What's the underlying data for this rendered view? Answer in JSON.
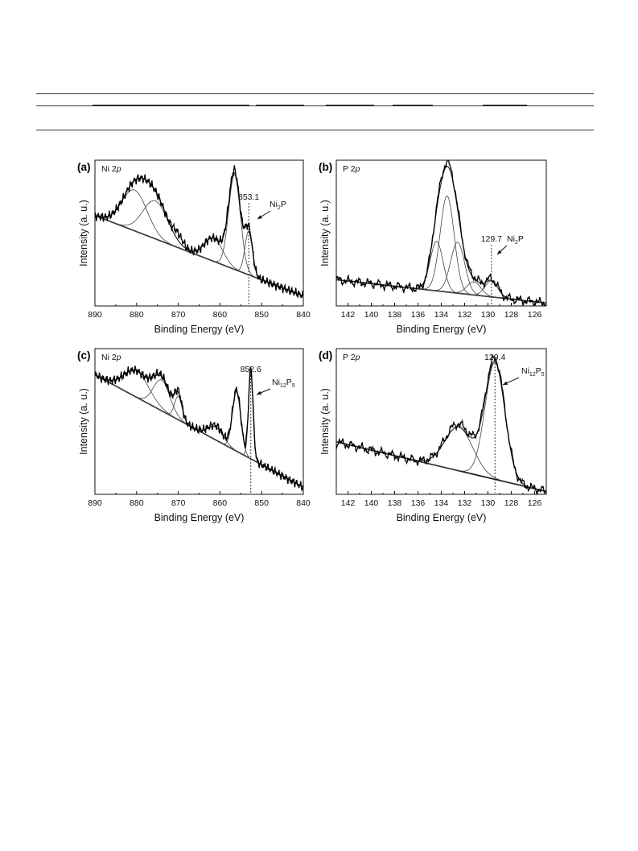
{
  "chart_data": [
    {
      "type": "line",
      "panel": "(a)",
      "element_label": "Ni 2",
      "element_orbital": "p",
      "xlabel": "Binding Energy (eV)",
      "ylabel": "Intensity (a. u.)",
      "xlim": [
        890,
        840
      ],
      "xticks": [
        890,
        880,
        870,
        860,
        850,
        840
      ],
      "baseline": [
        [
          890,
          0.62
        ],
        [
          841,
          0.08
        ]
      ],
      "raw_peaks": [
        [
          880.5,
          0.28,
          3.0
        ],
        [
          875.5,
          0.26,
          3.0
        ],
        [
          870.0,
          0.05,
          1.2
        ],
        [
          861.5,
          0.16,
          2.2
        ],
        [
          856.5,
          0.67,
          1.4
        ],
        [
          853.1,
          0.3,
          0.9
        ]
      ],
      "components": [
        [
          880.5,
          0.28,
          3.0
        ],
        [
          875.5,
          0.26,
          3.0
        ],
        [
          861.5,
          0.16,
          2.2
        ],
        [
          856.5,
          0.65,
          1.4
        ],
        [
          853.1,
          0.3,
          0.9
        ]
      ],
      "marker": 853.1,
      "annotation_value": "853.1",
      "annotation_phase_main": "Ni",
      "annotation_phase_sub": "2",
      "annotation_phase_tail": "P"
    },
    {
      "type": "line",
      "panel": "(b)",
      "element_label": "P 2",
      "element_orbital": "p",
      "xlabel": "Binding Energy (eV)",
      "ylabel": "Intensity (a. u.)",
      "xlim": [
        143,
        125
      ],
      "xticks": [
        142,
        140,
        138,
        136,
        134,
        132,
        130,
        128,
        126
      ],
      "baseline": [
        [
          143,
          0.18
        ],
        [
          125,
          0.02
        ]
      ],
      "raw_peaks": [
        [
          134.4,
          0.35,
          0.55
        ],
        [
          133.5,
          0.68,
          0.6
        ],
        [
          132.6,
          0.36,
          0.6
        ],
        [
          131.2,
          0.1,
          0.6
        ],
        [
          129.7,
          0.12,
          0.55
        ]
      ],
      "components": [
        [
          134.4,
          0.34,
          0.55
        ],
        [
          133.5,
          0.66,
          0.6
        ],
        [
          132.6,
          0.35,
          0.6
        ],
        [
          131.2,
          0.09,
          0.6
        ],
        [
          129.7,
          0.11,
          0.55
        ]
      ],
      "marker": 129.7,
      "annotation_value": "129.7",
      "annotation_phase_main": "Ni",
      "annotation_phase_sub": "2",
      "annotation_phase_tail": "P"
    },
    {
      "type": "line",
      "panel": "(c)",
      "element_label": "Ni 2",
      "element_orbital": "p",
      "xlabel": "Binding Energy (eV)",
      "ylabel": "Intensity (a. u.)",
      "xlim": [
        890,
        840
      ],
      "xticks": [
        890,
        880,
        870,
        860,
        850,
        840
      ],
      "baseline": [
        [
          890,
          0.82
        ],
        [
          842,
          0.08
        ]
      ],
      "raw_peaks": [
        [
          880.0,
          0.18,
          3.0
        ],
        [
          874.0,
          0.22,
          2.0
        ],
        [
          870.0,
          0.17,
          0.9
        ],
        [
          861.0,
          0.1,
          1.8
        ],
        [
          856.0,
          0.42,
          1.0
        ],
        [
          852.6,
          0.62,
          0.55
        ]
      ],
      "components": [
        [
          880.0,
          0.18,
          3.0
        ],
        [
          874.0,
          0.21,
          2.0
        ],
        [
          870.0,
          0.16,
          0.9
        ],
        [
          861.0,
          0.09,
          1.8
        ],
        [
          856.0,
          0.41,
          1.0
        ],
        [
          852.6,
          0.6,
          0.55
        ]
      ],
      "marker": 852.6,
      "annotation_value": "852.6",
      "annotation_phase_main": "Ni",
      "annotation_phase_sub": "12",
      "annotation_phase_tail": "P",
      "annotation_phase_sub2": "5"
    },
    {
      "type": "line",
      "panel": "(d)",
      "element_label": "P 2",
      "element_orbital": "p",
      "xlabel": "Binding Energy (eV)",
      "ylabel": "Intensity (a. u.)",
      "xlim": [
        143,
        125
      ],
      "xticks": [
        142,
        140,
        138,
        136,
        134,
        132,
        130,
        128,
        126
      ],
      "baseline": [
        [
          143,
          0.36
        ],
        [
          125,
          0.02
        ]
      ],
      "raw_peaks": [
        [
          132.5,
          0.32,
          1.2
        ],
        [
          129.4,
          0.82,
          0.85
        ]
      ],
      "components": [
        [
          132.5,
          0.3,
          1.2
        ],
        [
          129.4,
          0.8,
          0.85
        ]
      ],
      "marker": 129.4,
      "annotation_value": "129.4",
      "annotation_phase_main": "Ni",
      "annotation_phase_sub": "12",
      "annotation_phase_tail": "P",
      "annotation_phase_sub2": "5"
    }
  ]
}
